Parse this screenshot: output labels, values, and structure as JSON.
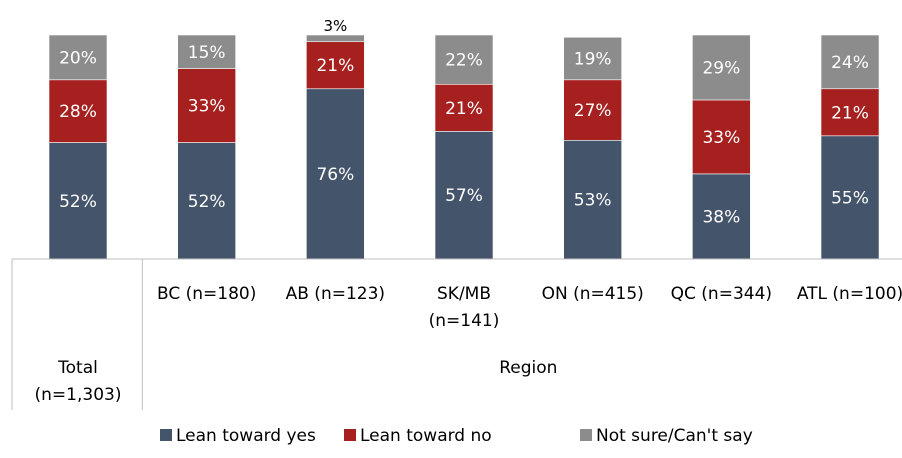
{
  "chart_data": {
    "type": "bar",
    "stacked": true,
    "normalized": true,
    "categories": [
      {
        "label_lines": [
          "Total",
          "(n=1,303)"
        ],
        "group": "Total"
      },
      {
        "label_lines": [
          "BC (n=180)"
        ],
        "group": "Region"
      },
      {
        "label_lines": [
          "AB (n=123)"
        ],
        "group": "Region"
      },
      {
        "label_lines": [
          "SK/MB",
          "(n=141)"
        ],
        "group": "Region"
      },
      {
        "label_lines": [
          "ON (n=415)"
        ],
        "group": "Region"
      },
      {
        "label_lines": [
          "QC (n=344)"
        ],
        "group": "Region"
      },
      {
        "label_lines": [
          "ATL (n=100)"
        ],
        "group": "Region"
      }
    ],
    "groups": [
      {
        "label_lines": [
          "Total",
          "(n=1,303)"
        ],
        "members": [
          0
        ]
      },
      {
        "label_lines": [
          "Region"
        ],
        "members": [
          1,
          2,
          3,
          4,
          5,
          6
        ]
      }
    ],
    "series": [
      {
        "name": "Lean toward yes",
        "color": "#44546A",
        "values": [
          52,
          52,
          76,
          57,
          53,
          38,
          55
        ],
        "labels": [
          "52%",
          "52%",
          "76%",
          "57%",
          "53%",
          "38%",
          "55%"
        ]
      },
      {
        "name": "Lean toward no",
        "color": "#A5201E",
        "values": [
          28,
          33,
          21,
          21,
          27,
          33,
          21
        ],
        "labels": [
          "28%",
          "33%",
          "21%",
          "21%",
          "27%",
          "33%",
          "21%"
        ]
      },
      {
        "name": "Not sure/Can't say",
        "color": "#8C8C8C",
        "values": [
          20,
          15,
          3,
          22,
          19,
          29,
          24
        ],
        "labels": [
          "20%",
          "15%",
          "3%",
          "22%",
          "19%",
          "29%",
          "24%"
        ]
      }
    ],
    "ylim": [
      0,
      100
    ],
    "legend_position": "bottom",
    "grid": false
  }
}
